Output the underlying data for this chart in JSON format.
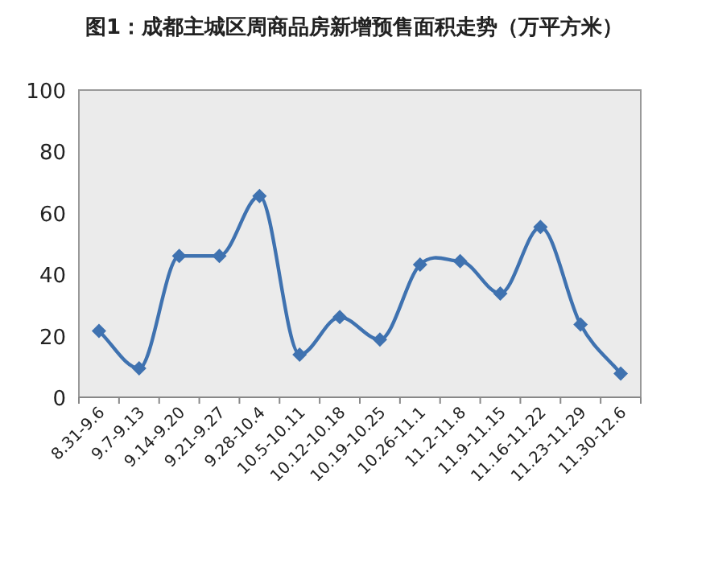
{
  "chart_data": {
    "type": "line",
    "title": "图1：成都主城区周商品房新增预售面积走势（万平方米）",
    "categories": [
      "8.31-9.6",
      "9.7-9.13",
      "9.14-9.20",
      "9.21-9.27",
      "9.28-10.4",
      "10.5-10.11",
      "10.12-10.18",
      "10.19-10.25",
      "10.26-11.1",
      "11.2-11.8",
      "11.9-11.15",
      "11.16-11.22",
      "11.23-11.29",
      "11.30-12.6"
    ],
    "series": [
      {
        "color": "#3f72b0",
        "values": [
          21.6,
          9.4,
          46,
          46,
          65.5,
          13.9,
          26.1,
          18.8,
          43.2,
          44.3,
          33.8,
          55.4,
          23.7,
          7.7
        ]
      }
    ],
    "ylim": [
      0,
      100
    ],
    "yticks": [
      0,
      20,
      40,
      60,
      80,
      100
    ],
    "grid": false,
    "marker": "diamond",
    "line_style": "solid"
  }
}
